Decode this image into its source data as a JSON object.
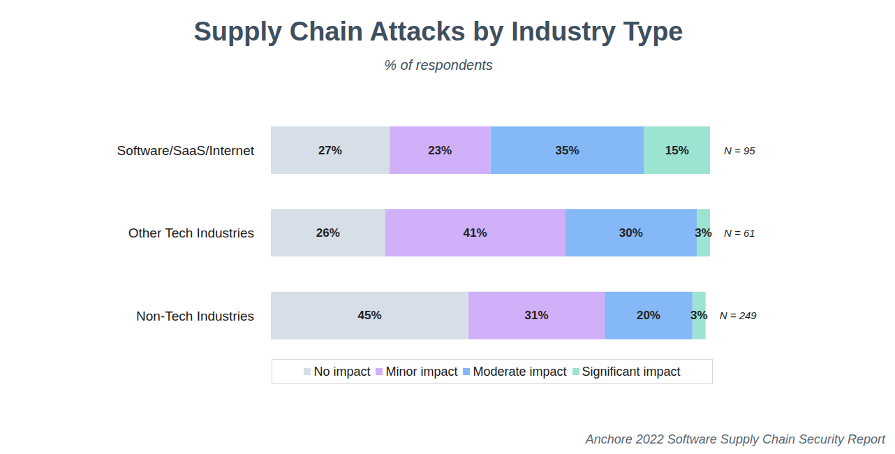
{
  "chart_data": {
    "type": "bar",
    "title": "Supply Chain Attacks by Industry Type",
    "subtitle": "% of respondents",
    "categories": [
      "Software/SaaS/Internet",
      "Other Tech Industries",
      "Non-Tech Industries"
    ],
    "series": [
      {
        "name": "No impact",
        "color": "#d6dfe8",
        "values": [
          27,
          26,
          45
        ],
        "value_labels": [
          "27%",
          "26%",
          "45%"
        ]
      },
      {
        "name": "Minor impact",
        "color": "#d0b0f9",
        "values": [
          23,
          41,
          31
        ],
        "value_labels": [
          "23%",
          "41%",
          "31%"
        ]
      },
      {
        "name": "Moderate impact",
        "color": "#85b8f7",
        "values": [
          35,
          30,
          20
        ],
        "value_labels": [
          "35%",
          "30%",
          "20%"
        ]
      },
      {
        "name": "Significant impact",
        "color": "#9de3d2",
        "values": [
          15,
          3,
          3
        ],
        "value_labels": [
          "15%",
          "3%",
          "3%"
        ]
      }
    ],
    "annotations": [
      "N = 95",
      "N = 61",
      "N = 249"
    ],
    "source": "Anchore 2022 Software Supply Chain Security Report",
    "orientation": "horizontal",
    "stacked": true,
    "data_labels": true,
    "tick_labels": "y",
    "legend": "bottom",
    "grid": false
  }
}
